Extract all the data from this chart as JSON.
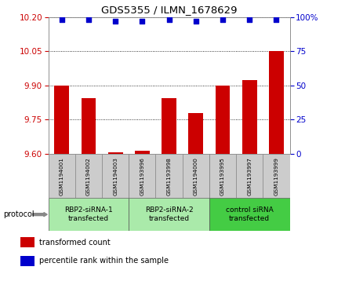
{
  "title": "GDS5355 / ILMN_1678629",
  "samples": [
    "GSM1194001",
    "GSM1194002",
    "GSM1194003",
    "GSM1193996",
    "GSM1193998",
    "GSM1194000",
    "GSM1193995",
    "GSM1193997",
    "GSM1193999"
  ],
  "bar_values": [
    9.9,
    9.845,
    9.608,
    9.615,
    9.845,
    9.78,
    9.9,
    9.925,
    10.05
  ],
  "percentile_values": [
    98,
    98,
    97,
    97,
    98,
    97,
    98,
    98,
    98
  ],
  "ylim_left": [
    9.6,
    10.2
  ],
  "ylim_right": [
    0,
    100
  ],
  "yticks_left": [
    9.6,
    9.75,
    9.9,
    10.05,
    10.2
  ],
  "yticks_right": [
    0,
    25,
    50,
    75,
    100
  ],
  "bar_color": "#cc0000",
  "dot_color": "#0000cc",
  "groups": [
    {
      "label": "RBP2-siRNA-1\ntransfected",
      "start": 0,
      "end": 3,
      "color": "#aaeaaa"
    },
    {
      "label": "RBP2-siRNA-2\ntransfected",
      "start": 3,
      "end": 6,
      "color": "#aaeaaa"
    },
    {
      "label": "control siRNA\ntransfected",
      "start": 6,
      "end": 9,
      "color": "#44cc44"
    }
  ],
  "protocol_label": "protocol",
  "background_color": "#ffffff",
  "tick_color_left": "#cc0000",
  "tick_color_right": "#0000cc",
  "bar_base": 9.6,
  "sample_box_color": "#cccccc",
  "legend_items": [
    {
      "color": "#cc0000",
      "label": "transformed count"
    },
    {
      "color": "#0000cc",
      "label": "percentile rank within the sample"
    }
  ]
}
